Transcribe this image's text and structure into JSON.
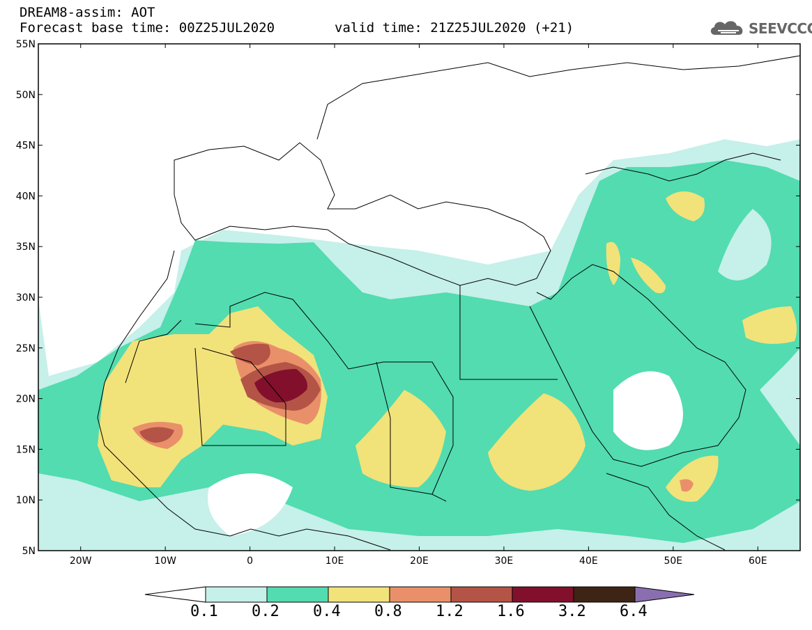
{
  "title_line1": "DREAM8-assim: AOT",
  "title_line2": "Forecast base time: 00Z25JUL2020",
  "valid_time": "valid time: 21Z25JUL2020 (+21)",
  "logo_text": "SEEVCCC",
  "map": {
    "lon_range": [
      -25,
      65
    ],
    "lat_range": [
      5,
      55
    ],
    "lat_labels": [
      "55N",
      "50N",
      "45N",
      "40N",
      "35N",
      "30N",
      "25N",
      "20N",
      "15N",
      "10N",
      "5N"
    ],
    "lon_labels": [
      "20W",
      "10W",
      "0",
      "10E",
      "20E",
      "30E",
      "40E",
      "50E",
      "60E"
    ]
  },
  "colorbar": {
    "levels": [
      "0.1",
      "0.2",
      "0.4",
      "0.8",
      "1.2",
      "1.6",
      "3.2",
      "6.4"
    ],
    "colors": [
      "#c6f0ea",
      "#52dcb0",
      "#f2e27a",
      "#e9906a",
      "#b45446",
      "#82102c",
      "#3e2414",
      "#8a6fb0"
    ]
  }
}
